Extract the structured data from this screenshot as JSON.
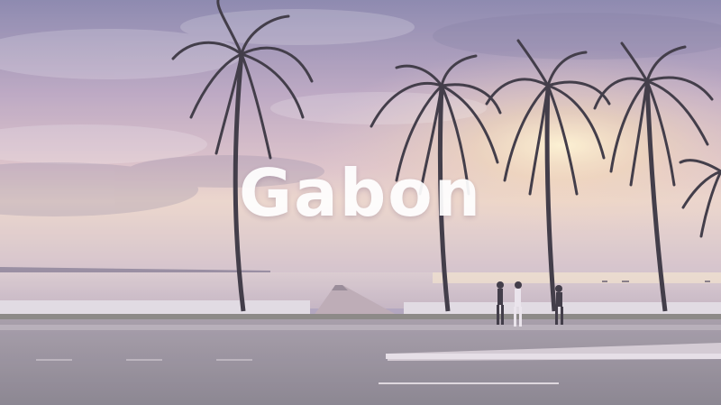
{
  "title": "Gabon",
  "colors": {
    "sky_top": "#7e7aa6",
    "sky_mid": "#c9a9bd",
    "sun_glow": "#ffe7b0",
    "sea": "#c8b7c4",
    "road": "#8b8591",
    "silhouette": "#2a2431",
    "title_text": "#ffffff"
  },
  "scene": {
    "subject": "palm-trees-seafront-sunset",
    "people_count": 3
  }
}
